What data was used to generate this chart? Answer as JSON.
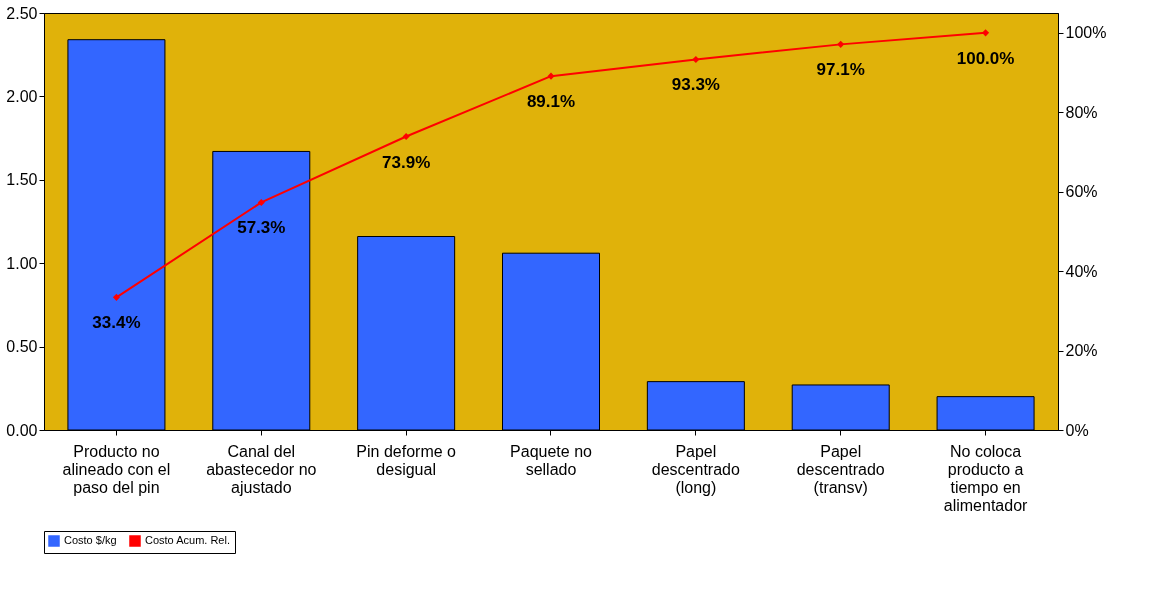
{
  "chart_data": {
    "type": "bar",
    "categories": [
      "Producto no alineado con el paso del pin",
      "Canal del abastecedor no ajustado",
      "Pin deforme o desigual",
      "Paquete no sellado",
      "Papel descentrado (long)",
      "Papel descentrado (transv)",
      "No coloca producto a tiempo en alimentador"
    ],
    "series": [
      {
        "name": "Costo $/kg",
        "color": "#3366ff",
        "values": [
          2.34,
          1.67,
          1.16,
          1.06,
          0.29,
          0.27,
          0.2
        ]
      },
      {
        "name": "Costo Acum. Rel.",
        "type": "line",
        "axis": "y2",
        "color": "#ff0000",
        "marker": "diamond",
        "values": [
          33.4,
          57.3,
          73.9,
          89.1,
          93.3,
          97.1,
          100.0
        ],
        "value_labels": [
          "33.4%",
          "57.3%",
          "73.9%",
          "89.1%",
          "93.3%",
          "97.1%",
          "100.0%"
        ]
      }
    ],
    "ylim": [
      0,
      2.5
    ],
    "yticks": [
      {
        "value": 0,
        "label": "0.00"
      },
      {
        "value": 0.5,
        "label": "0.50"
      },
      {
        "value": 1,
        "label": "1.00"
      },
      {
        "value": 1.5,
        "label": "1.50"
      },
      {
        "value": 2,
        "label": "2.00"
      },
      {
        "value": 2.5,
        "label": "2.50"
      }
    ],
    "y2lim": [
      0,
      105
    ],
    "y2ticks": [
      {
        "value": 0,
        "label": "0%"
      },
      {
        "value": 20,
        "label": "20%"
      },
      {
        "value": 40,
        "label": "40%"
      },
      {
        "value": 60,
        "label": "60%"
      },
      {
        "value": 80,
        "label": "80%"
      },
      {
        "value": 100,
        "label": "100%"
      }
    ],
    "grid": false,
    "legend": "bottom"
  }
}
